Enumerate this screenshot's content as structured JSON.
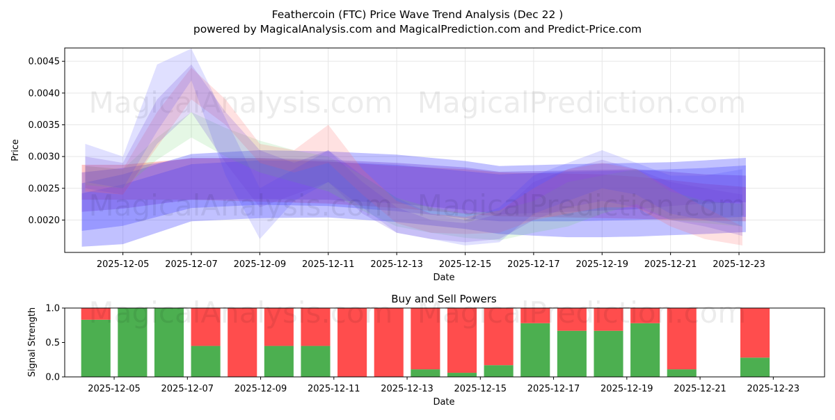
{
  "title_line1": "Feathercoin (FTC) Price Wave Trend Analysis (Dec 22 )",
  "title_line2": "powered by MagicalAnalysis.com and MagicalPrediction.com and Predict-Price.com",
  "watermark_1": "MagicalAnalysis.com",
  "watermark_2": "MagicalPrediction.com",
  "colors": {
    "buy": "#4caf50",
    "sell": "#ff4d4d",
    "red": "#ff6a6a",
    "blue": "#3f3fff",
    "green": "#5ccc5c",
    "purple": "#6a3fd8"
  },
  "chart_data": [
    {
      "type": "area",
      "title": "",
      "xlabel": "Date",
      "ylabel": "Price",
      "xlim": [
        -1.7,
        20.5
      ],
      "ylim": [
        0.00149,
        0.00471
      ],
      "yticks": [
        "0.0020",
        "0.0025",
        "0.0030",
        "0.0035",
        "0.0040",
        "0.0045"
      ],
      "ytick_values": [
        0.002,
        0.0025,
        0.003,
        0.0035,
        0.004,
        0.0045
      ],
      "xticks": [
        "2025-12-05",
        "2025-12-07",
        "2025-12-09",
        "2025-12-11",
        "2025-12-13",
        "2025-12-15",
        "2025-12-17",
        "2025-12-19",
        "2025-12-21",
        "2025-12-23"
      ],
      "xtick_days": [
        0,
        2,
        4,
        6,
        8,
        10,
        12,
        14,
        16,
        18
      ],
      "grid": true,
      "x_days": [
        -1.2,
        0,
        2,
        4,
        6,
        8,
        10,
        11,
        13,
        14,
        15,
        16,
        17,
        18.2
      ],
      "bands": [
        {
          "name": "red wide trend",
          "color": "red",
          "opacity": 0.38,
          "upper": [
            0.00287,
            0.00287,
            0.00297,
            0.00297,
            0.00292,
            0.00285,
            0.0028,
            0.00275,
            0.00273,
            0.00272,
            0.00268,
            0.00263,
            0.00257,
            0.00252
          ],
          "lower": [
            0.00232,
            0.00232,
            0.00232,
            0.00229,
            0.00226,
            0.00219,
            0.0021,
            0.00206,
            0.00204,
            0.00203,
            0.00202,
            0.002,
            0.00199,
            0.00198
          ]
        },
        {
          "name": "blue wide trend",
          "color": "blue",
          "opacity": 0.32,
          "upper": [
            0.00258,
            0.00272,
            0.00304,
            0.0031,
            0.00308,
            0.00303,
            0.00293,
            0.00285,
            0.00288,
            0.00289,
            0.0029,
            0.00291,
            0.00294,
            0.00298
          ],
          "lower": [
            0.00158,
            0.00162,
            0.00198,
            0.00203,
            0.00204,
            0.00197,
            0.00186,
            0.00178,
            0.00173,
            0.00173,
            0.00174,
            0.00176,
            0.00178,
            0.00181
          ]
        },
        {
          "name": "blue mid trend",
          "color": "blue",
          "opacity": 0.3,
          "upper": [
            0.00242,
            0.00256,
            0.00288,
            0.00294,
            0.00292,
            0.00287,
            0.00277,
            0.00272,
            0.00276,
            0.00277,
            0.00278,
            0.0028,
            0.00282,
            0.00286
          ],
          "lower": [
            0.00183,
            0.00191,
            0.00219,
            0.00224,
            0.00222,
            0.00214,
            0.00203,
            0.00198,
            0.00198,
            0.00199,
            0.002,
            0.00202,
            0.00203,
            0.00205
          ]
        },
        {
          "name": "purple core trend",
          "color": "purple",
          "opacity": 0.34,
          "upper": [
            0.00275,
            0.00282,
            0.00298,
            0.00298,
            0.00295,
            0.0029,
            0.00283,
            0.00276,
            0.00278,
            0.00279,
            0.0028,
            0.00276,
            0.00272,
            0.0027
          ],
          "lower": [
            0.00213,
            0.00218,
            0.00232,
            0.00233,
            0.00232,
            0.00226,
            0.00216,
            0.00209,
            0.00213,
            0.00215,
            0.00217,
            0.00222,
            0.00226,
            0.00228
          ]
        },
        {
          "name": "green wave",
          "color": "green",
          "opacity": 0.16,
          "x": [
            -1.1,
            0,
            1,
            2,
            3,
            4,
            5,
            6,
            7,
            8,
            9,
            10,
            11,
            12,
            13,
            14,
            15,
            16,
            17,
            18.1
          ],
          "upper": [
            0.00285,
            0.0028,
            0.0033,
            0.0037,
            0.00345,
            0.00325,
            0.0031,
            0.003,
            0.0027,
            0.00235,
            0.0022,
            0.0021,
            0.00215,
            0.0023,
            0.0026,
            0.0027,
            0.0028,
            0.00245,
            0.0023,
            0.00225
          ],
          "lower": [
            0.00255,
            0.0025,
            0.00295,
            0.0033,
            0.003,
            0.00275,
            0.0026,
            0.00245,
            0.00215,
            0.0019,
            0.0018,
            0.00172,
            0.00168,
            0.0018,
            0.0019,
            0.0021,
            0.00225,
            0.002,
            0.00195,
            0.0019
          ]
        },
        {
          "name": "red wave",
          "color": "red",
          "opacity": 0.2,
          "x": [
            -1.1,
            0,
            1,
            2,
            3,
            4,
            5,
            6,
            7,
            8,
            9,
            10,
            11,
            12,
            13,
            14,
            15,
            16,
            17,
            18.1
          ],
          "upper": [
            0.00285,
            0.0028,
            0.0037,
            0.0044,
            0.0039,
            0.0032,
            0.0031,
            0.0035,
            0.0028,
            0.0023,
            0.0021,
            0.00205,
            0.00215,
            0.0025,
            0.0028,
            0.0029,
            0.0028,
            0.0025,
            0.0022,
            0.0019
          ],
          "lower": [
            0.00245,
            0.0024,
            0.00315,
            0.0039,
            0.0035,
            0.0029,
            0.00275,
            0.0029,
            0.0024,
            0.00195,
            0.0018,
            0.00178,
            0.0018,
            0.002,
            0.0021,
            0.0022,
            0.0022,
            0.0019,
            0.0017,
            0.0016
          ]
        },
        {
          "name": "blue wave",
          "color": "blue",
          "opacity": 0.16,
          "x": [
            -1.1,
            0,
            1,
            2,
            3,
            4,
            5,
            6,
            7,
            8,
            9,
            10,
            11,
            12,
            13,
            14,
            15,
            16,
            17,
            18.1
          ],
          "upper": [
            0.0032,
            0.003,
            0.00445,
            0.0047,
            0.0036,
            0.0025,
            0.0028,
            0.0031,
            0.0027,
            0.00235,
            0.0021,
            0.002,
            0.0022,
            0.0027,
            0.0029,
            0.0031,
            0.0029,
            0.0027,
            0.0027,
            0.0028
          ],
          "lower": [
            0.0026,
            0.0025,
            0.0034,
            0.0042,
            0.0027,
            0.0017,
            0.0023,
            0.0026,
            0.0022,
            0.0018,
            0.0017,
            0.0016,
            0.00165,
            0.0021,
            0.0023,
            0.0025,
            0.0024,
            0.0021,
            0.002,
            0.0019
          ]
        },
        {
          "name": "purple wave",
          "color": "purple",
          "opacity": 0.2,
          "x": [
            -1.1,
            0,
            1,
            2,
            3,
            4,
            5,
            6,
            7,
            8,
            9,
            10,
            11,
            12,
            13,
            14,
            15,
            16,
            17,
            18.1
          ],
          "upper": [
            0.003,
            0.0029,
            0.0039,
            0.00445,
            0.0037,
            0.0031,
            0.0029,
            0.0031,
            0.0026,
            0.0022,
            0.002,
            0.00195,
            0.0021,
            0.0026,
            0.0028,
            0.00295,
            0.0028,
            0.0026,
            0.0025,
            0.0024
          ],
          "lower": [
            0.0025,
            0.0024,
            0.0032,
            0.0037,
            0.0029,
            0.0022,
            0.0024,
            0.0026,
            0.0021,
            0.0018,
            0.0017,
            0.00165,
            0.0017,
            0.002,
            0.0022,
            0.0023,
            0.0022,
            0.002,
            0.0019,
            0.00175
          ]
        }
      ]
    },
    {
      "type": "bar",
      "title": "Buy and Sell Powers",
      "xlabel": "Date",
      "ylabel": "Signal Strength",
      "ylim": [
        0,
        1
      ],
      "yticks": [
        "0.0",
        "0.5",
        "1.0"
      ],
      "ytick_values": [
        0,
        0.5,
        1
      ],
      "xlim": [
        -1.35,
        19.4
      ],
      "xticks": [
        "2025-12-05",
        "2025-12-07",
        "2025-12-09",
        "2025-12-11",
        "2025-12-13",
        "2025-12-15",
        "2025-12-17",
        "2025-12-19",
        "2025-12-21",
        "2025-12-23"
      ],
      "xtick_days": [
        0,
        2,
        4,
        6,
        8,
        10,
        12,
        14,
        16,
        18
      ],
      "categories": [
        "2025-12-04",
        "2025-12-05",
        "2025-12-06",
        "2025-12-07",
        "2025-12-08",
        "2025-12-09",
        "2025-12-10",
        "2025-12-11",
        "2025-12-12",
        "2025-12-13",
        "2025-12-14",
        "2025-12-15",
        "2025-12-16",
        "2025-12-17",
        "2025-12-18",
        "2025-12-19",
        "2025-12-20",
        "2025-12-22"
      ],
      "bar_days": [
        -0.5,
        0.5,
        1.5,
        2.5,
        3.5,
        4.5,
        5.5,
        6.5,
        7.5,
        8.5,
        9.5,
        10.5,
        11.5,
        12.5,
        13.5,
        14.5,
        15.5,
        17.5
      ],
      "series": [
        {
          "name": "Buy",
          "color": "buy",
          "values": [
            0.83,
            1.0,
            1.0,
            0.45,
            0.0,
            0.45,
            0.45,
            0.0,
            0.0,
            0.11,
            0.06,
            0.17,
            0.78,
            0.67,
            0.67,
            0.78,
            0.11,
            0.28
          ]
        },
        {
          "name": "Sell",
          "color": "sell",
          "values": [
            0.17,
            0.0,
            0.0,
            0.55,
            1.0,
            0.55,
            0.55,
            1.0,
            1.0,
            0.89,
            0.94,
            0.83,
            0.22,
            0.33,
            0.33,
            0.22,
            0.89,
            0.72
          ]
        }
      ]
    }
  ]
}
